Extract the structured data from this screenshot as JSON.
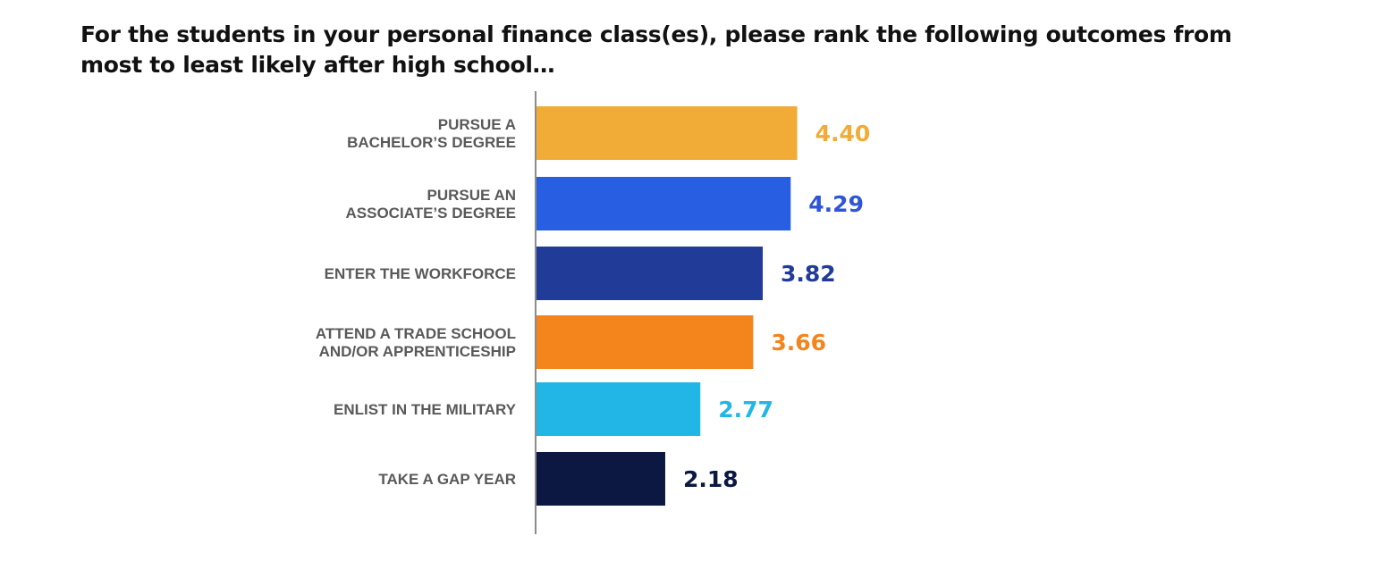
{
  "title_lines": [
    "For the students in your personal finance class(es), please rank the following outcomes from",
    "most to least likely after high school…"
  ],
  "chart_data": {
    "type": "bar",
    "orientation": "horizontal",
    "categories": [
      [
        "PURSUE A",
        "BACHELOR’S DEGREE"
      ],
      [
        "PURSUE AN",
        "ASSOCIATE’S DEGREE"
      ],
      [
        "ENTER THE WORKFORCE"
      ],
      [
        "ATTEND A TRADE SCHOOL",
        "AND/OR APPRENTICESHIP"
      ],
      [
        "ENLIST IN THE MILITARY"
      ],
      [
        "TAKE A GAP YEAR"
      ]
    ],
    "values": [
      4.4,
      4.29,
      3.82,
      3.66,
      2.77,
      2.18
    ],
    "value_labels": [
      "4.40",
      "4.29",
      "3.82",
      "3.66",
      "2.77",
      "2.18"
    ],
    "colors": [
      "#F0AC36",
      "#285FE2",
      "#213B98",
      "#F4841C",
      "#21B6E6",
      "#0C1842"
    ],
    "label_colors": [
      "#F0AC36",
      "#2F55D6",
      "#213B98",
      "#F4841C",
      "#21B6E6",
      "#0C1842"
    ],
    "grid": false,
    "legend": "none",
    "data_labels": "outside-end"
  }
}
